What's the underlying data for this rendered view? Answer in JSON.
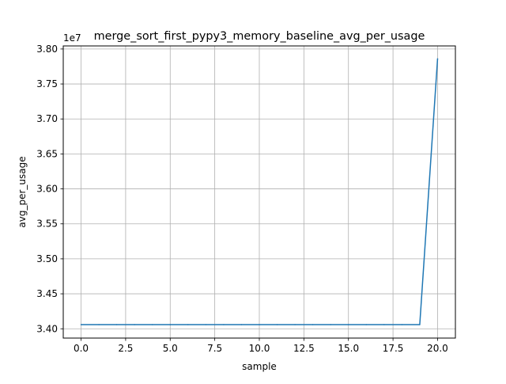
{
  "chart_data": {
    "type": "line",
    "title": "merge_sort_first_pypy3_memory_baseline_avg_per_usage",
    "xlabel": "sample",
    "ylabel": "avg_per_usage",
    "y_offset_label": "1e7",
    "xlim": [
      -1.0,
      21.0
    ],
    "ylim": [
      3.3867,
      3.8044
    ],
    "y_scale_factor": 10000000,
    "x_ticks": [
      0.0,
      2.5,
      5.0,
      7.5,
      10.0,
      12.5,
      15.0,
      17.5,
      20.0
    ],
    "x_tick_labels": [
      "0.0",
      "2.5",
      "5.0",
      "7.5",
      "10.0",
      "12.5",
      "15.0",
      "17.5",
      "20.0"
    ],
    "y_ticks": [
      3.4,
      3.45,
      3.5,
      3.55,
      3.6,
      3.65,
      3.7,
      3.75,
      3.8
    ],
    "y_tick_labels": [
      "3.40",
      "3.45",
      "3.50",
      "3.55",
      "3.60",
      "3.65",
      "3.70",
      "3.75",
      "3.80"
    ],
    "grid": true,
    "series": [
      {
        "color": "#1f77b4",
        "x": [
          0,
          1,
          2,
          3,
          4,
          5,
          6,
          7,
          8,
          9,
          10,
          11,
          12,
          13,
          14,
          15,
          16,
          17,
          18,
          19,
          20
        ],
        "values": [
          3.406,
          3.406,
          3.406,
          3.406,
          3.406,
          3.406,
          3.406,
          3.406,
          3.406,
          3.406,
          3.406,
          3.406,
          3.406,
          3.406,
          3.406,
          3.406,
          3.406,
          3.406,
          3.406,
          3.406,
          3.786
        ]
      }
    ]
  }
}
